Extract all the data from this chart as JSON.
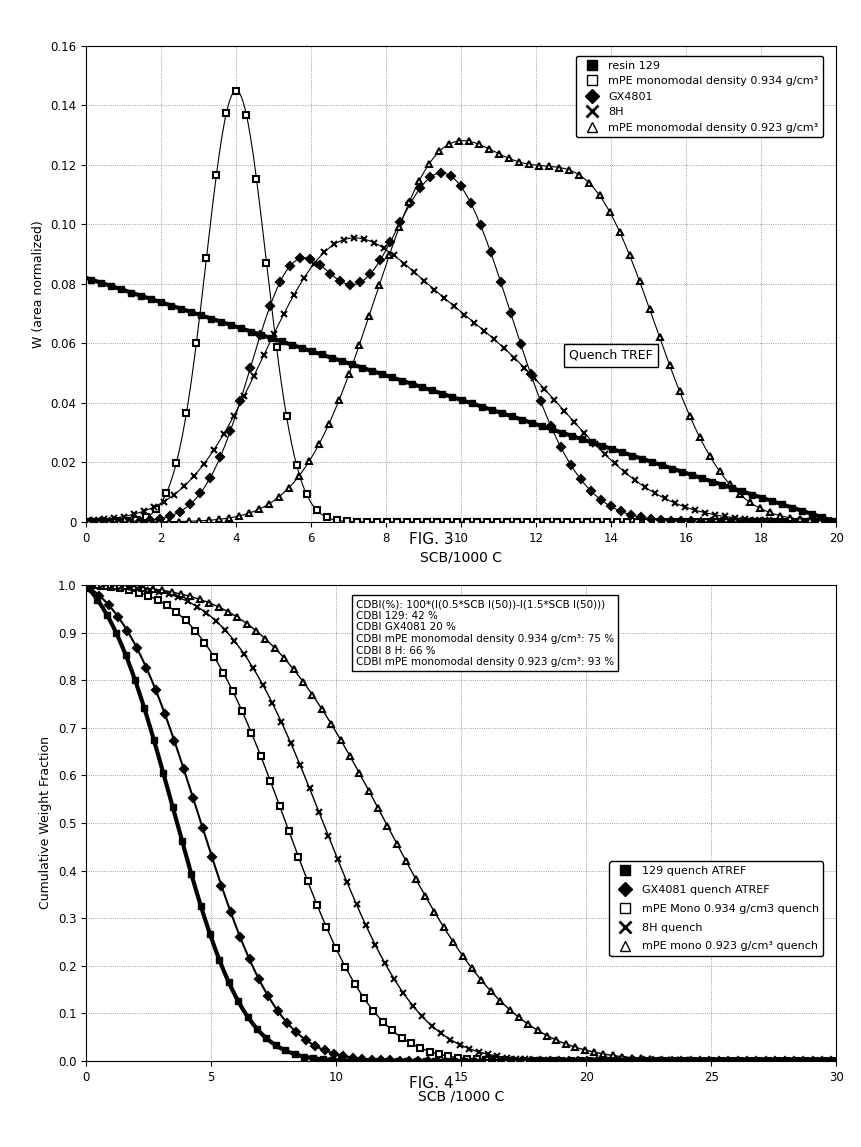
{
  "fig3": {
    "xlabel": "SCB/1000 C",
    "ylabel": "W (area normalized)",
    "xlim": [
      0,
      20
    ],
    "ylim": [
      0,
      0.16
    ],
    "yticks": [
      0,
      0.02,
      0.04,
      0.06,
      0.08,
      0.1,
      0.12,
      0.14,
      0.16
    ],
    "xticks": [
      0,
      2,
      4,
      6,
      8,
      10,
      12,
      14,
      16,
      18,
      20
    ],
    "annotation": "Quench TREF"
  },
  "fig4": {
    "xlabel": "SCB /1000 C",
    "ylabel": "Cumulative Weight Fraction",
    "xlim": [
      0,
      30
    ],
    "ylim": [
      0,
      1
    ],
    "yticks": [
      0,
      0.1,
      0.2,
      0.3,
      0.4,
      0.5,
      0.6,
      0.7,
      0.8,
      0.9,
      1.0
    ],
    "xticks": [
      0,
      5,
      10,
      15,
      20,
      25,
      30
    ],
    "annotation_title": "CDBI(%): 100*(I(0.5*SCB I(50))-I(1.5*SCB I(50)))",
    "annotation_lines": [
      "CDBI 129: 42 %",
      "CDBI GX4081 20 %",
      "CDBI mPE monomodal density 0.934 g/cm³: 75 %",
      "CDBI 8 H: 66 %",
      "CDBI mPE monomodal density 0.923 g/cm³: 93 %"
    ]
  }
}
